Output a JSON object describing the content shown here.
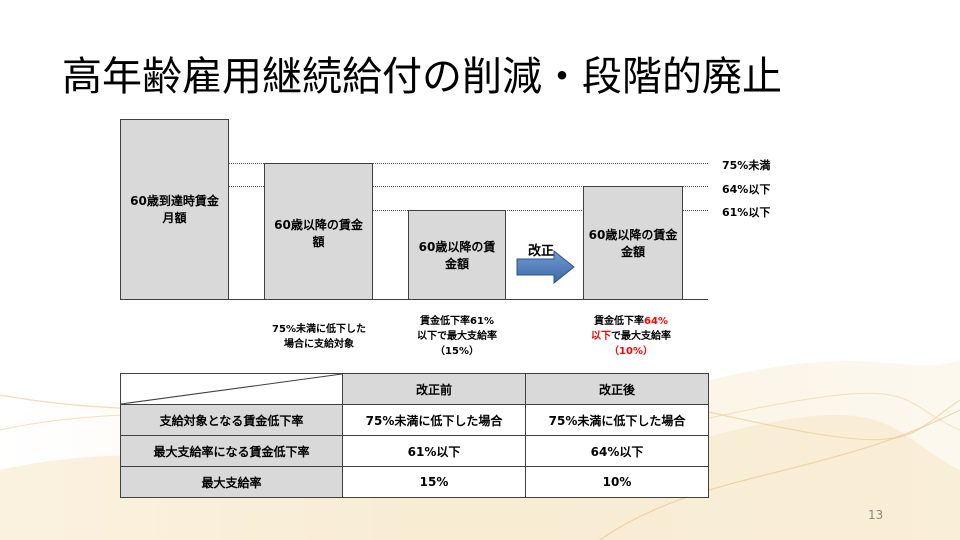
{
  "title": "高年齢雇用継続給付の削減・段階的廃止",
  "bars": {
    "b1": [
      "60歳到達時賃金",
      "月額"
    ],
    "b2": [
      "60歳以降の賃金",
      "額"
    ],
    "b3": [
      "60歳以降の賃",
      "金額"
    ],
    "b4": [
      "60歳以降の賃金",
      "金額"
    ]
  },
  "levels": {
    "l75": "75%未満",
    "l64": "64%以下",
    "l61": "61%以下"
  },
  "arrow_label": "改正",
  "captions": {
    "c2": [
      "75%未満に低下した",
      "場合に支給対象"
    ],
    "c3": [
      "賃金低下率61%",
      "以下で最大支給率",
      "（15%）"
    ],
    "c4_a": "賃金低下率",
    "c4_b": "64%",
    "c4_c": "以下",
    "c4_d": "で最大支給率",
    "c4_e": "（10%）"
  },
  "table": {
    "col_before": "改正前",
    "col_after": "改正後",
    "rows": [
      {
        "label": "支給対象となる賃金低下率",
        "before": "75%未満に低下した場合",
        "after": "75%未満に低下した場合"
      },
      {
        "label": "最大支給率になる賃金低下率",
        "before": "61%以下",
        "after": "64%以下"
      },
      {
        "label": "最大支給率",
        "before": "15%",
        "after": "10%"
      }
    ]
  },
  "colors": {
    "arrow": "#4a7ab8",
    "highlight": "#ff0000",
    "bar_fill": "#d9d9d9"
  },
  "page_number": "13"
}
